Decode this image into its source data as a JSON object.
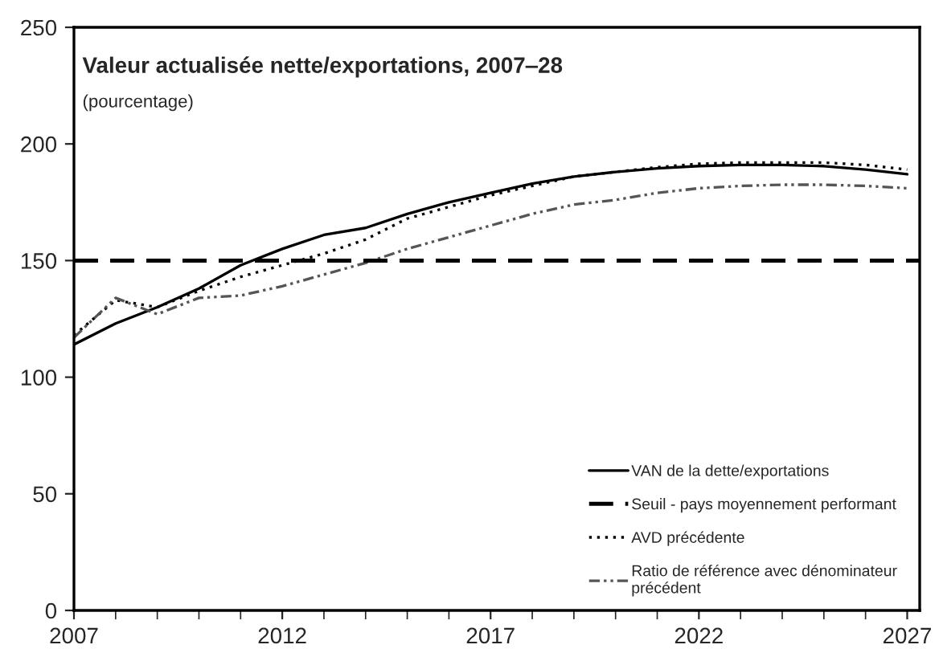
{
  "chart_data": {
    "type": "line",
    "title": "Valeur actualisée nette/exportations, 2007‒28",
    "subtitle": "(pourcentage)",
    "x": [
      2007,
      2008,
      2009,
      2010,
      2011,
      2012,
      2013,
      2014,
      2015,
      2016,
      2017,
      2018,
      2019,
      2020,
      2021,
      2022,
      2023,
      2024,
      2025,
      2026,
      2027
    ],
    "series": [
      {
        "name": "VAN de la dette/exportations",
        "color": "#000000",
        "line_style": "solid",
        "values": [
          114,
          123,
          130,
          138,
          148,
          155,
          161,
          164,
          170,
          175,
          179,
          183,
          186,
          188,
          189.5,
          190.5,
          191,
          191,
          190.5,
          189,
          187
        ]
      },
      {
        "name": "AVD précédente",
        "color": "#000000",
        "line_style": "dotted",
        "values": [
          118,
          133,
          130,
          137,
          143,
          148,
          153,
          159,
          168,
          173,
          178,
          182,
          186,
          188,
          190,
          191.5,
          192,
          192,
          192,
          191,
          189
        ]
      },
      {
        "name": "Ratio de référence avec dénominateur précédent",
        "color": "#555555",
        "line_style": "dashdot",
        "values": [
          117,
          134,
          127,
          134,
          135,
          139,
          144,
          149,
          155,
          160,
          165,
          170,
          174,
          176,
          179,
          181,
          182,
          182.5,
          182.5,
          182,
          181
        ]
      }
    ],
    "ref_lines": [
      {
        "axis": "y",
        "value": 150,
        "label": "Seuil - pays moyennement performant",
        "color": "#000000",
        "line_style": "dashed"
      }
    ],
    "xlim": [
      2007,
      2027.3
    ],
    "ylim": [
      0,
      250
    ],
    "xticks": [
      2007,
      2012,
      2017,
      2022,
      2027
    ],
    "yticks": [
      0,
      50,
      100,
      150,
      200,
      250
    ],
    "grid": false,
    "legend": "bottom right"
  }
}
